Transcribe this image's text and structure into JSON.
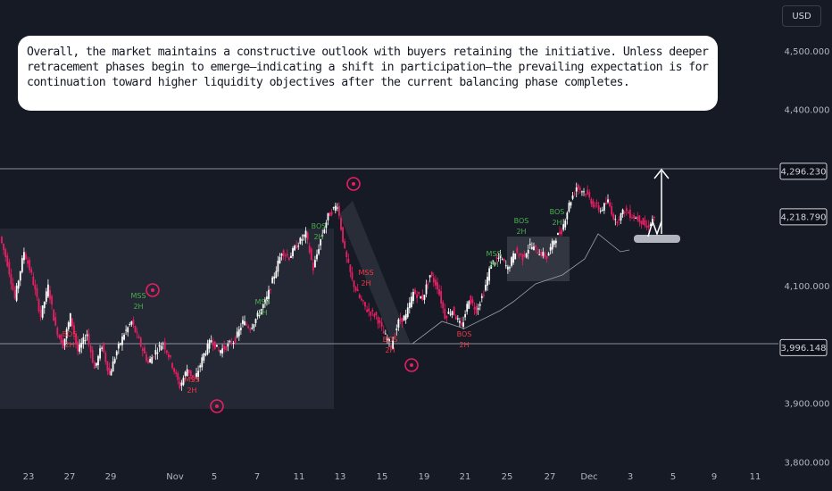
{
  "currency": "USD",
  "annotation": "Overall, the market maintains a constructive outlook with buyers retaining the initiative. Unless deeper retracement phases begin to emerge—indicating a shift in participation—the prevailing expectation is for continuation toward higher liquidity objectives after the current balancing phase completes.",
  "colors": {
    "background": "#161a25",
    "bull": "#ffffff",
    "bear": "#e91e63",
    "bull_label": "#4caf50",
    "bear_label": "#f23645",
    "zone": "#2a2e39"
  },
  "chart_data": {
    "type": "candlestick",
    "title": "",
    "y_axis": {
      "range": [
        3775,
        4565
      ],
      "ticks": [
        "4,500.000",
        "4,400.000",
        "4,100.000",
        "3,900.000",
        "3,800.000"
      ]
    },
    "x_axis": {
      "ticks": [
        "23",
        "27",
        "29",
        "Nov",
        "5",
        "7",
        "11",
        "13",
        "15",
        "19",
        "21",
        "25",
        "27",
        "Dec",
        "3",
        "5",
        "9",
        "11"
      ]
    },
    "price_labels": [
      {
        "label": "4,296.230",
        "value": 4296.23
      },
      {
        "label": "4,218.790",
        "value": 4218.79
      },
      {
        "label": "3,996.148",
        "value": 3996.148
      }
    ],
    "close_path": [
      [
        0,
        4185
      ],
      [
        4,
        4140
      ],
      [
        8,
        4080
      ],
      [
        13,
        4160
      ],
      [
        17,
        4120
      ],
      [
        22,
        4050
      ],
      [
        26,
        4100
      ],
      [
        30,
        4030
      ],
      [
        34,
        4000
      ],
      [
        38,
        4050
      ],
      [
        42,
        3990
      ],
      [
        47,
        4020
      ],
      [
        51,
        3960
      ],
      [
        55,
        4000
      ],
      [
        59,
        3950
      ],
      [
        63,
        3990
      ],
      [
        67,
        4020
      ],
      [
        71,
        4040
      ],
      [
        76,
        4000
      ],
      [
        80,
        3970
      ],
      [
        84,
        3990
      ],
      [
        88,
        4005
      ],
      [
        92,
        3975
      ],
      [
        97,
        3930
      ],
      [
        101,
        3960
      ],
      [
        105,
        3940
      ],
      [
        110,
        3985
      ],
      [
        114,
        4010
      ],
      [
        118,
        3990
      ],
      [
        123,
        4000
      ],
      [
        127,
        4010
      ],
      [
        131,
        4040
      ],
      [
        135,
        4030
      ],
      [
        139,
        4050
      ],
      [
        144,
        4080
      ],
      [
        148,
        4120
      ],
      [
        152,
        4160
      ],
      [
        156,
        4150
      ],
      [
        160,
        4170
      ],
      [
        165,
        4190
      ],
      [
        169,
        4130
      ],
      [
        173,
        4180
      ],
      [
        177,
        4220
      ],
      [
        182,
        4240
      ],
      [
        186,
        4160
      ],
      [
        190,
        4110
      ],
      [
        194,
        4080
      ],
      [
        198,
        4060
      ],
      [
        203,
        4050
      ],
      [
        207,
        4020
      ],
      [
        211,
        4000
      ],
      [
        215,
        4040
      ],
      [
        219,
        4050
      ],
      [
        223,
        4090
      ],
      [
        228,
        4080
      ],
      [
        232,
        4120
      ],
      [
        236,
        4100
      ],
      [
        240,
        4050
      ],
      [
        244,
        4060
      ],
      [
        249,
        4030
      ],
      [
        253,
        4080
      ],
      [
        257,
        4060
      ],
      [
        261,
        4090
      ],
      [
        265,
        4140
      ],
      [
        270,
        4150
      ],
      [
        274,
        4130
      ],
      [
        278,
        4160
      ],
      [
        282,
        4150
      ],
      [
        286,
        4170
      ],
      [
        290,
        4160
      ],
      [
        295,
        4150
      ],
      [
        299,
        4180
      ],
      [
        303,
        4195
      ],
      [
        307,
        4240
      ],
      [
        311,
        4270
      ],
      [
        316,
        4260
      ],
      [
        320,
        4240
      ],
      [
        324,
        4230
      ],
      [
        328,
        4245
      ],
      [
        332,
        4210
      ],
      [
        337,
        4230
      ],
      [
        341,
        4220
      ],
      [
        345,
        4215
      ],
      [
        349,
        4200
      ],
      [
        353,
        4219
      ]
    ],
    "zones": [
      {
        "from": 4200,
        "to": 3890
      },
      {
        "from": 4150,
        "to": 4110
      }
    ],
    "structure_labels": [
      "MSS 2H",
      "BOS 2H",
      "MSS 2H",
      "MSS 2H",
      "BOS 2H",
      "MSS 2H",
      "BOS 2H",
      "BOS 2H",
      "MSS 2H",
      "BOS 2H",
      "BOS 2H"
    ]
  }
}
